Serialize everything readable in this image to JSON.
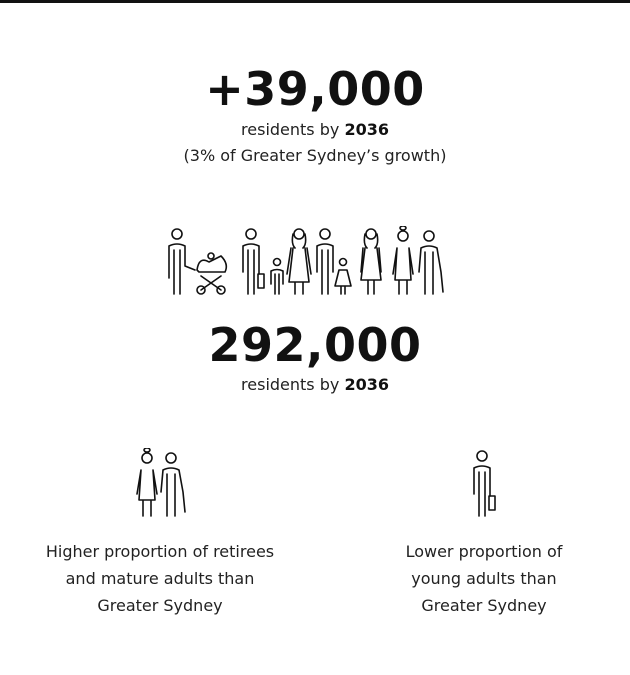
{
  "stats": {
    "growth": {
      "value": "+39,000",
      "line1_prefix": "residents by ",
      "line1_bold": "2036",
      "line2": "(3% of Greater Sydney’s growth)"
    },
    "total": {
      "value": "292,000",
      "line1_prefix": "residents by ",
      "line1_bold": "2036"
    }
  },
  "facts": [
    {
      "icon": "older-couple-icon",
      "text_lines": [
        "Higher proportion of retirees",
        "and mature adults than",
        "Greater Sydney"
      ]
    },
    {
      "icon": "young-adult-icon",
      "text_lines": [
        "Lower proportion of",
        "young adults than",
        "Greater Sydney"
      ]
    }
  ],
  "icons": {
    "crowd": "population-group-icon"
  }
}
